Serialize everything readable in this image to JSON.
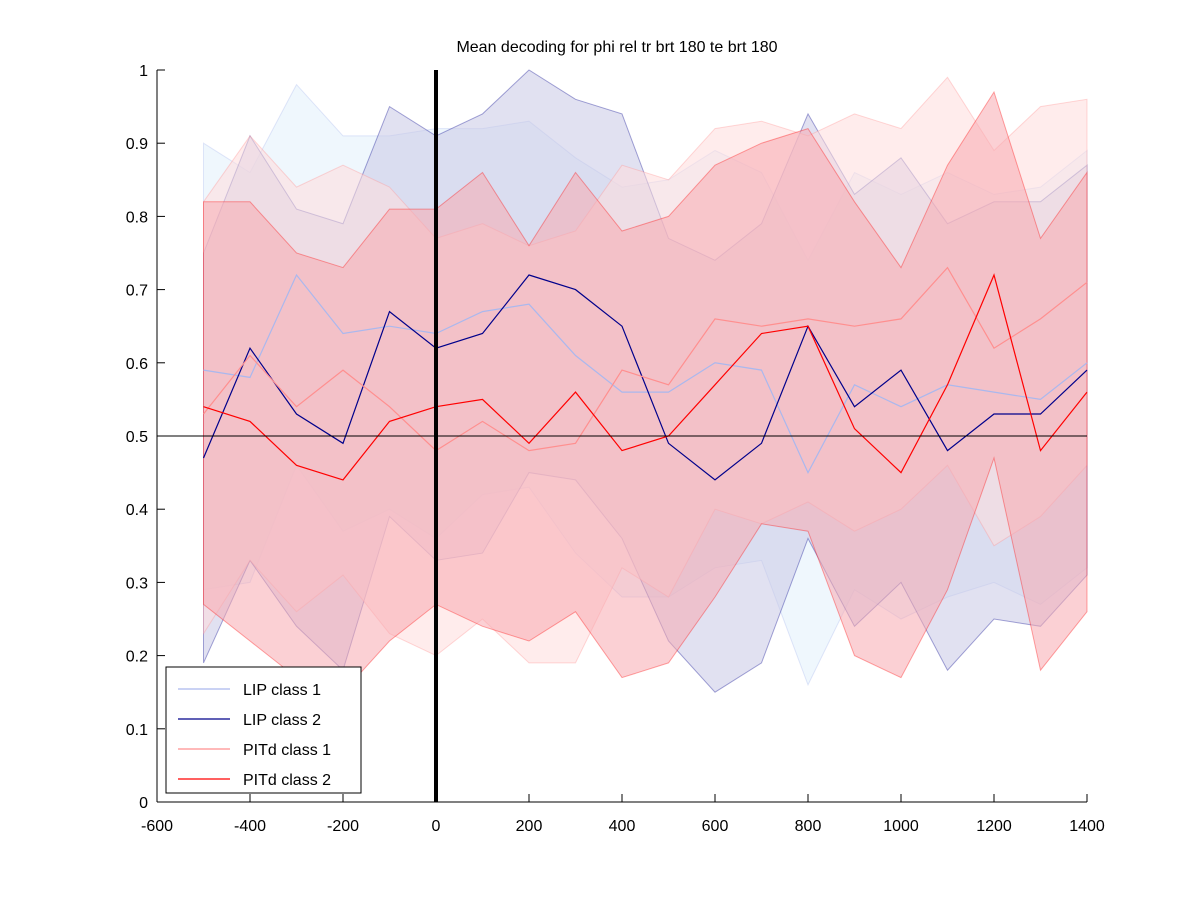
{
  "chart_data": {
    "type": "line",
    "title": "Mean decoding for phi rel tr brt 180 te brt 180",
    "xlabel": "",
    "ylabel": "",
    "xlim": [
      -600,
      1400
    ],
    "ylim": [
      0,
      1
    ],
    "xticks": [
      -600,
      -400,
      -200,
      0,
      200,
      400,
      600,
      800,
      1000,
      1200,
      1400
    ],
    "yticks": [
      0,
      0.1,
      0.2,
      0.3,
      0.4,
      0.5,
      0.6,
      0.7,
      0.8,
      0.9,
      1
    ],
    "xtick_labels": [
      "-600",
      "-400",
      "-200",
      "0",
      "200",
      "400",
      "600",
      "800",
      "1000",
      "1200",
      "1400"
    ],
    "ytick_labels": [
      "0",
      "0.1",
      "0.2",
      "0.3",
      "0.4",
      "0.5",
      "0.6",
      "0.7",
      "0.8",
      "0.9",
      "1"
    ],
    "grid": false,
    "legend_position": "bottom-left",
    "reference_lines": {
      "horizontal_y": 0.5,
      "vertical_x": 0
    },
    "x": [
      -500,
      -400,
      -300,
      -200,
      -100,
      0,
      100,
      200,
      300,
      400,
      500,
      600,
      700,
      800,
      900,
      1000,
      1100,
      1200,
      1300,
      1400
    ],
    "series": [
      {
        "name": "LIP class 1",
        "color": "#aab8ee",
        "band_color": "#e2f0fb",
        "values": [
          0.59,
          0.58,
          0.72,
          0.64,
          0.65,
          0.64,
          0.67,
          0.68,
          0.61,
          0.56,
          0.56,
          0.6,
          0.59,
          0.45,
          0.57,
          0.54,
          0.57,
          0.56,
          0.55,
          0.6
        ],
        "upper": [
          0.9,
          0.86,
          0.98,
          0.91,
          0.91,
          0.92,
          0.92,
          0.93,
          0.88,
          0.84,
          0.85,
          0.89,
          0.86,
          0.74,
          0.86,
          0.83,
          0.86,
          0.83,
          0.84,
          0.89
        ],
        "lower": [
          0.29,
          0.3,
          0.46,
          0.37,
          0.4,
          0.36,
          0.42,
          0.43,
          0.34,
          0.28,
          0.28,
          0.32,
          0.33,
          0.16,
          0.29,
          0.25,
          0.28,
          0.3,
          0.27,
          0.32
        ]
      },
      {
        "name": "LIP class 2",
        "color": "#00008b",
        "band_color": "#c9c9e6",
        "values": [
          0.47,
          0.62,
          0.53,
          0.49,
          0.67,
          0.62,
          0.64,
          0.72,
          0.7,
          0.65,
          0.49,
          0.44,
          0.49,
          0.65,
          0.54,
          0.59,
          0.48,
          0.53,
          0.53,
          0.59
        ],
        "upper": [
          0.75,
          0.91,
          0.81,
          0.79,
          0.95,
          0.91,
          0.94,
          1.0,
          0.96,
          0.94,
          0.77,
          0.74,
          0.79,
          0.94,
          0.83,
          0.88,
          0.79,
          0.82,
          0.82,
          0.87
        ],
        "lower": [
          0.19,
          0.33,
          0.24,
          0.18,
          0.39,
          0.33,
          0.34,
          0.45,
          0.44,
          0.36,
          0.22,
          0.15,
          0.19,
          0.36,
          0.24,
          0.3,
          0.18,
          0.25,
          0.24,
          0.31
        ]
      },
      {
        "name": "PITd class 1",
        "color": "#ff8f8f",
        "band_color": "#ffdcdc",
        "values": [
          0.53,
          0.61,
          0.54,
          0.59,
          0.54,
          0.48,
          0.52,
          0.48,
          0.49,
          0.59,
          0.57,
          0.66,
          0.65,
          0.66,
          0.65,
          0.66,
          0.73,
          0.62,
          0.66,
          0.71
        ],
        "upper": [
          0.82,
          0.91,
          0.84,
          0.87,
          0.84,
          0.77,
          0.79,
          0.76,
          0.78,
          0.87,
          0.85,
          0.92,
          0.93,
          0.91,
          0.94,
          0.92,
          0.99,
          0.89,
          0.95,
          0.96
        ],
        "lower": [
          0.23,
          0.33,
          0.26,
          0.31,
          0.23,
          0.2,
          0.25,
          0.19,
          0.19,
          0.32,
          0.28,
          0.4,
          0.38,
          0.41,
          0.37,
          0.4,
          0.46,
          0.35,
          0.39,
          0.46
        ]
      },
      {
        "name": "PITd class 2",
        "color": "#ff0000",
        "band_color": "#f7aab0",
        "values": [
          0.54,
          0.52,
          0.46,
          0.44,
          0.52,
          0.54,
          0.55,
          0.49,
          0.56,
          0.48,
          0.5,
          0.57,
          0.64,
          0.65,
          0.51,
          0.45,
          0.57,
          0.72,
          0.48,
          0.56
        ],
        "upper": [
          0.82,
          0.82,
          0.75,
          0.73,
          0.81,
          0.81,
          0.86,
          0.76,
          0.86,
          0.78,
          0.8,
          0.87,
          0.9,
          0.92,
          0.82,
          0.73,
          0.87,
          0.97,
          0.77,
          0.86
        ],
        "lower": [
          0.27,
          0.22,
          0.17,
          0.15,
          0.22,
          0.27,
          0.24,
          0.22,
          0.26,
          0.17,
          0.19,
          0.28,
          0.38,
          0.37,
          0.2,
          0.17,
          0.29,
          0.47,
          0.18,
          0.26
        ]
      }
    ]
  }
}
